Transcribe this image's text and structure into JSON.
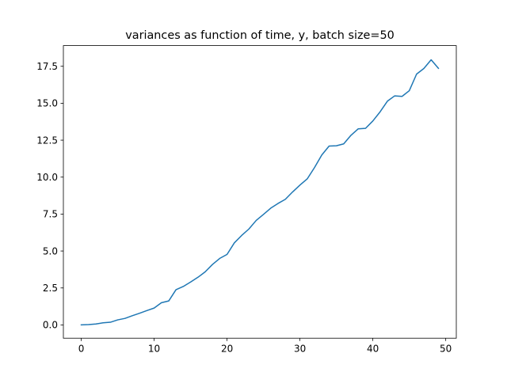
{
  "chart_data": {
    "type": "line",
    "title": "variances as function of time, y, batch size=50",
    "xlabel": "",
    "ylabel": "",
    "xlim": [
      -2.45,
      51.45
    ],
    "ylim": [
      -0.9,
      18.9
    ],
    "grid": false,
    "x_ticks": [
      0,
      10,
      20,
      30,
      40,
      50
    ],
    "x_tick_labels": [
      "0",
      "10",
      "20",
      "30",
      "40",
      "50"
    ],
    "y_ticks": [
      0.0,
      2.5,
      5.0,
      7.5,
      10.0,
      12.5,
      15.0,
      17.5
    ],
    "y_tick_labels": [
      "0.0",
      "2.5",
      "5.0",
      "7.5",
      "10.0",
      "12.5",
      "15.0",
      "17.5"
    ],
    "series": [
      {
        "color": "#1f77b4",
        "x": [
          0,
          1,
          2,
          3,
          4,
          5,
          6,
          7,
          8,
          9,
          10,
          11,
          12,
          13,
          14,
          15,
          16,
          17,
          18,
          19,
          20,
          21,
          22,
          23,
          24,
          25,
          26,
          27,
          28,
          29,
          30,
          31,
          32,
          33,
          34,
          35,
          36,
          37,
          38,
          39,
          40,
          41,
          42,
          43,
          44,
          45,
          46,
          47,
          48,
          49
        ],
        "y": [
          0.0,
          0.02,
          0.06,
          0.14,
          0.18,
          0.34,
          0.44,
          0.62,
          0.79,
          0.97,
          1.14,
          1.5,
          1.62,
          2.38,
          2.6,
          2.9,
          3.22,
          3.59,
          4.09,
          4.5,
          4.77,
          5.55,
          6.05,
          6.49,
          7.07,
          7.48,
          7.9,
          8.22,
          8.5,
          9.0,
          9.46,
          9.88,
          10.65,
          11.5,
          12.1,
          12.12,
          12.25,
          12.83,
          13.27,
          13.3,
          13.8,
          14.42,
          15.14,
          15.5,
          15.46,
          15.85,
          16.97,
          17.35,
          17.94,
          17.36
        ]
      }
    ]
  }
}
